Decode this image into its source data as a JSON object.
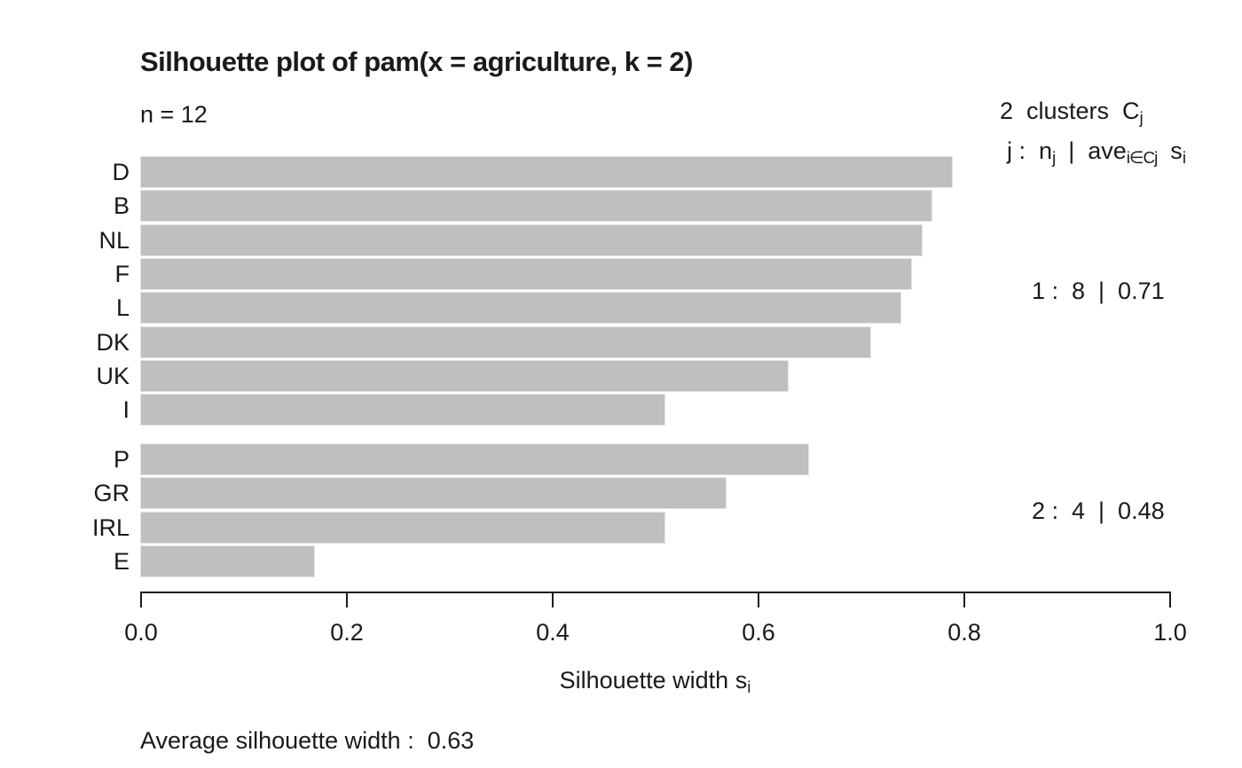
{
  "chart_data": {
    "type": "bar",
    "orientation": "horizontal",
    "title": "Silhouette plot of pam(x = agriculture, k = 2)",
    "n_label": "n = 12",
    "legend": {
      "line1_parts": [
        {
          "t": "2  clusters  C",
          "sub": false
        },
        {
          "t": "j",
          "sub": true
        }
      ],
      "line2_parts": [
        {
          "t": "j :  n",
          "sub": false
        },
        {
          "t": "j",
          "sub": true
        },
        {
          "t": "  |  ave",
          "sub": false
        },
        {
          "t": "i∈Cj",
          "sub": true
        },
        {
          "t": "  s",
          "sub": false
        },
        {
          "t": "i",
          "sub": true
        }
      ]
    },
    "xlabel_parts": [
      {
        "t": "Silhouette width s",
        "sub": false
      },
      {
        "t": "i",
        "sub": true
      }
    ],
    "xlim": [
      0,
      1
    ],
    "grid": false,
    "x_ticks": [
      {
        "label": "0.0",
        "value": 0.0
      },
      {
        "label": "0.2",
        "value": 0.2
      },
      {
        "label": "0.4",
        "value": 0.4
      },
      {
        "label": "0.6",
        "value": 0.6
      },
      {
        "label": "0.8",
        "value": 0.8
      },
      {
        "label": "1.0",
        "value": 1.0
      }
    ],
    "clusters": [
      {
        "id": 1,
        "summary": "1 :  8  |  0.71",
        "bars": [
          {
            "name": "D",
            "value": 0.79
          },
          {
            "name": "B",
            "value": 0.77
          },
          {
            "name": "NL",
            "value": 0.76
          },
          {
            "name": "F",
            "value": 0.75
          },
          {
            "name": "L",
            "value": 0.74
          },
          {
            "name": "DK",
            "value": 0.71
          },
          {
            "name": "UK",
            "value": 0.63
          },
          {
            "name": "I",
            "value": 0.51
          }
        ]
      },
      {
        "id": 2,
        "summary": "2 :  4  |  0.48",
        "bars": [
          {
            "name": "P",
            "value": 0.65
          },
          {
            "name": "GR",
            "value": 0.57
          },
          {
            "name": "IRL",
            "value": 0.51
          },
          {
            "name": "E",
            "value": 0.17
          }
        ]
      }
    ],
    "footer": "Average silhouette width :  0.63",
    "bar_color": "#BFBFBF",
    "axis_color": "#1A1A1A",
    "text_color": "#1A1A1A"
  }
}
